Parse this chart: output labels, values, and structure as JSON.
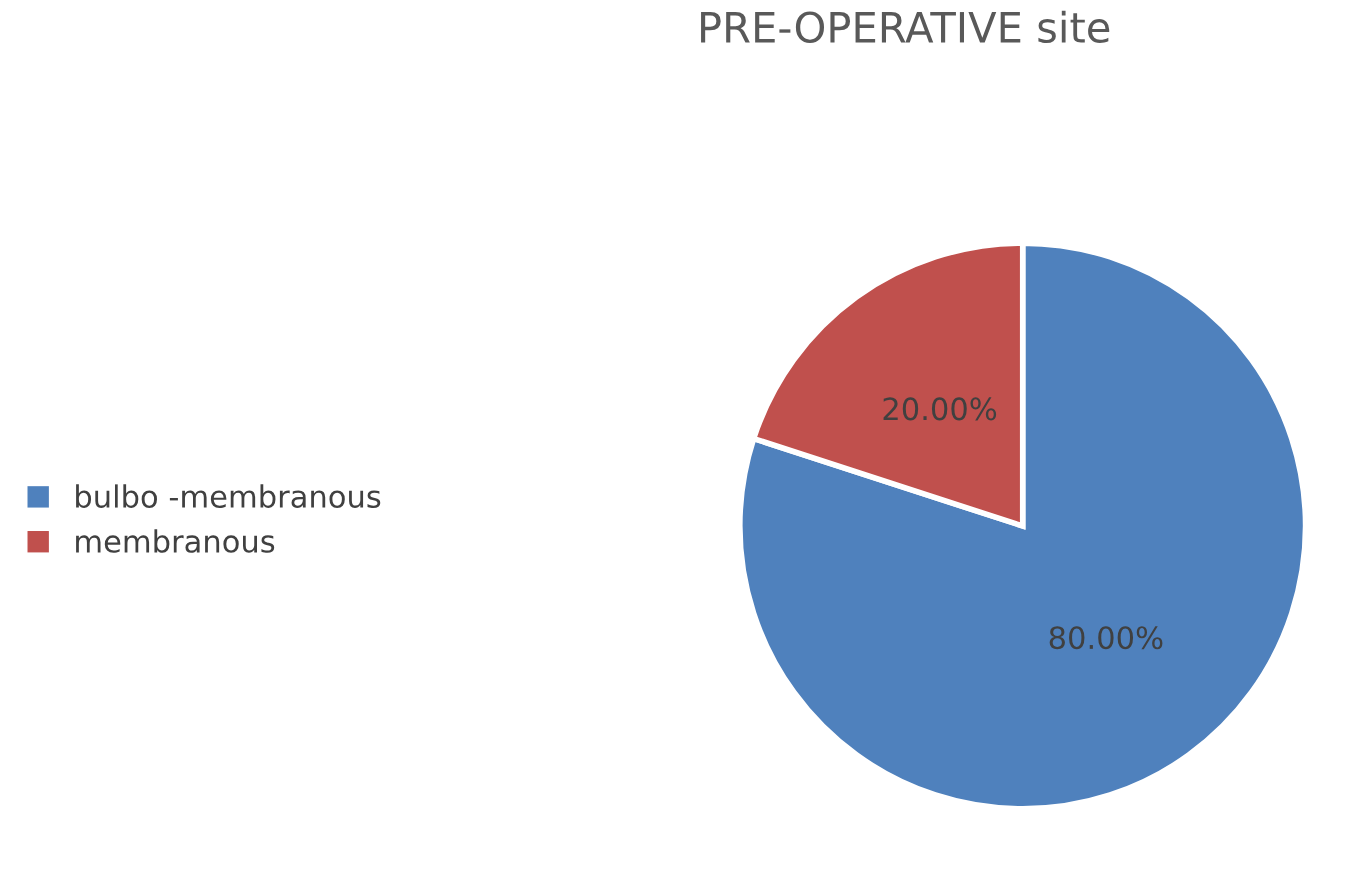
{
  "chart_data": {
    "type": "pie",
    "title": "PRE-OPERATIVE site",
    "categories": [
      "bulbo -membranous",
      "membranous"
    ],
    "values": [
      80,
      20
    ],
    "colors": [
      "#4f81bd",
      "#c0504d"
    ],
    "value_labels": [
      "80.00%",
      "20.00%"
    ],
    "legend": "left"
  }
}
